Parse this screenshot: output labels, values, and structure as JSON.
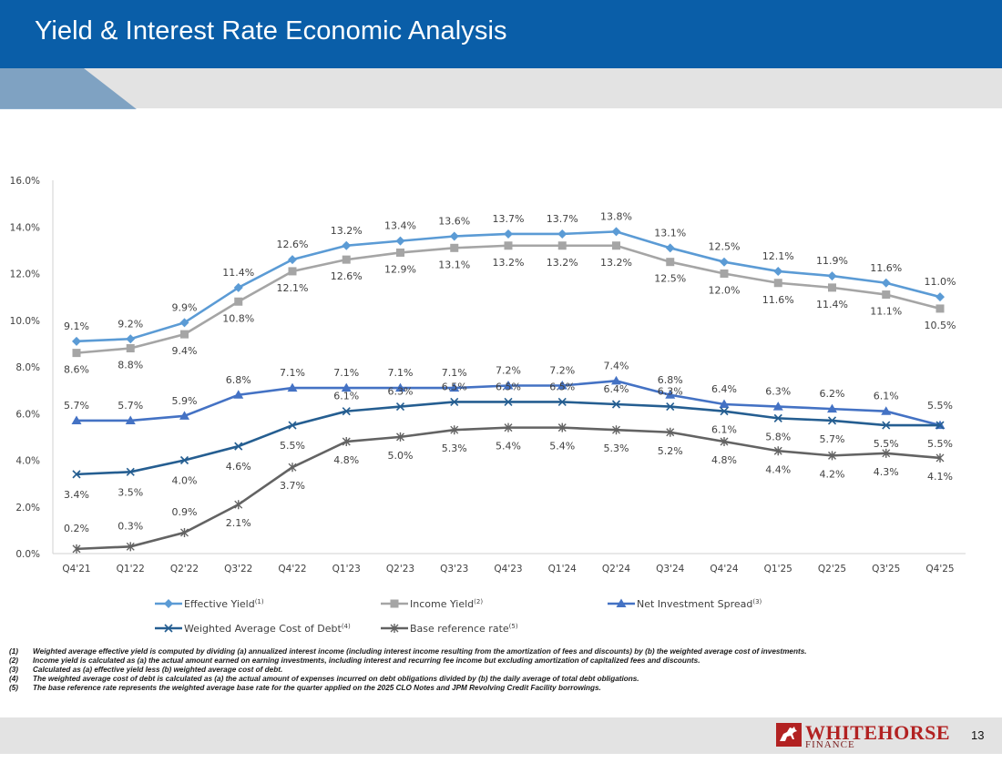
{
  "header": {
    "title": "Yield & Interest Rate Economic Analysis"
  },
  "chart_data": {
    "type": "line",
    "title": "",
    "xlabel": "",
    "ylabel": "",
    "ylim": [
      0,
      16
    ],
    "yticks": [
      "0.0%",
      "2.0%",
      "4.0%",
      "6.0%",
      "8.0%",
      "10.0%",
      "12.0%",
      "14.0%",
      "16.0%"
    ],
    "categories": [
      "Q4'21",
      "Q1'22",
      "Q2'22",
      "Q3'22",
      "Q4'22",
      "Q1'23",
      "Q2'23",
      "Q3'23",
      "Q4'23",
      "Q1'24",
      "Q2'24",
      "Q3'24",
      "Q4'24",
      "Q1'25",
      "Q2'25",
      "Q3'25",
      "Q4'25"
    ],
    "series": [
      {
        "name": "Effective Yield",
        "sup": "(1)",
        "color": "#5b9bd5",
        "marker": "diamond",
        "labelPos": "above",
        "values": [
          9.1,
          9.2,
          9.9,
          11.4,
          12.6,
          13.2,
          13.4,
          13.6,
          13.7,
          13.7,
          13.8,
          13.1,
          12.5,
          12.1,
          11.9,
          11.6,
          11.0
        ]
      },
      {
        "name": "Income Yield",
        "sup": "(2)",
        "color": "#a5a5a5",
        "marker": "square",
        "labelPos": "below",
        "values": [
          8.6,
          8.8,
          9.4,
          10.8,
          12.1,
          12.6,
          12.9,
          13.1,
          13.2,
          13.2,
          13.2,
          12.5,
          12.0,
          11.6,
          11.4,
          11.1,
          10.5
        ]
      },
      {
        "name": "Net Investment Spread",
        "sup": "(3)",
        "color": "#4472c4",
        "marker": "triangle",
        "labelPos": "above",
        "values": [
          5.7,
          5.7,
          5.9,
          6.8,
          7.1,
          7.1,
          7.1,
          7.1,
          7.2,
          7.2,
          7.4,
          6.8,
          6.4,
          6.3,
          6.2,
          6.1,
          5.5
        ]
      },
      {
        "name": "Weighted Average Cost of Debt",
        "sup": "(4)",
        "color": "#255e91",
        "marker": "x",
        "labelPos": "mixed",
        "values": [
          3.4,
          3.5,
          4.0,
          4.6,
          5.5,
          6.1,
          6.3,
          6.5,
          6.5,
          6.5,
          6.4,
          6.3,
          6.1,
          5.8,
          5.7,
          5.5,
          5.5
        ]
      },
      {
        "name": "Base reference rate",
        "sup": "(5)",
        "color": "#636363",
        "marker": "star",
        "labelPos": "mixed",
        "values": [
          0.2,
          0.3,
          0.9,
          2.1,
          3.7,
          4.8,
          5.0,
          5.3,
          5.4,
          5.4,
          5.3,
          5.2,
          4.8,
          4.4,
          4.2,
          4.3,
          4.1
        ]
      }
    ],
    "legend": "bottom"
  },
  "footnotes": [
    {
      "num": "(1)",
      "text": "Weighted average effective yield is computed by dividing (a) annualized interest income (including interest income resulting from the amortization of fees and discounts) by (b) the weighted average cost of investments."
    },
    {
      "num": "(2)",
      "text": "Income yield is calculated as (a) the actual amount earned on earning investments, including interest and recurring fee income but excluding amortization of capitalized fees and discounts."
    },
    {
      "num": "(3)",
      "text": "Calculated as (a) effective yield less (b) weighted average cost of debt."
    },
    {
      "num": "(4)",
      "text": "The weighted average cost of debt is calculated as (a) the actual amount of expenses incurred on debt obligations divided by (b) the daily average of total debt obligations."
    },
    {
      "num": "(5)",
      "text": "The base reference rate represents the weighted average base rate for the quarter applied on the 2025 CLO Notes and JPM Revolving Credit Facility borrowings."
    }
  ],
  "footer": {
    "logo_word": "WHITEHORSE",
    "logo_sub": "FINANCE",
    "page_number": "13"
  }
}
